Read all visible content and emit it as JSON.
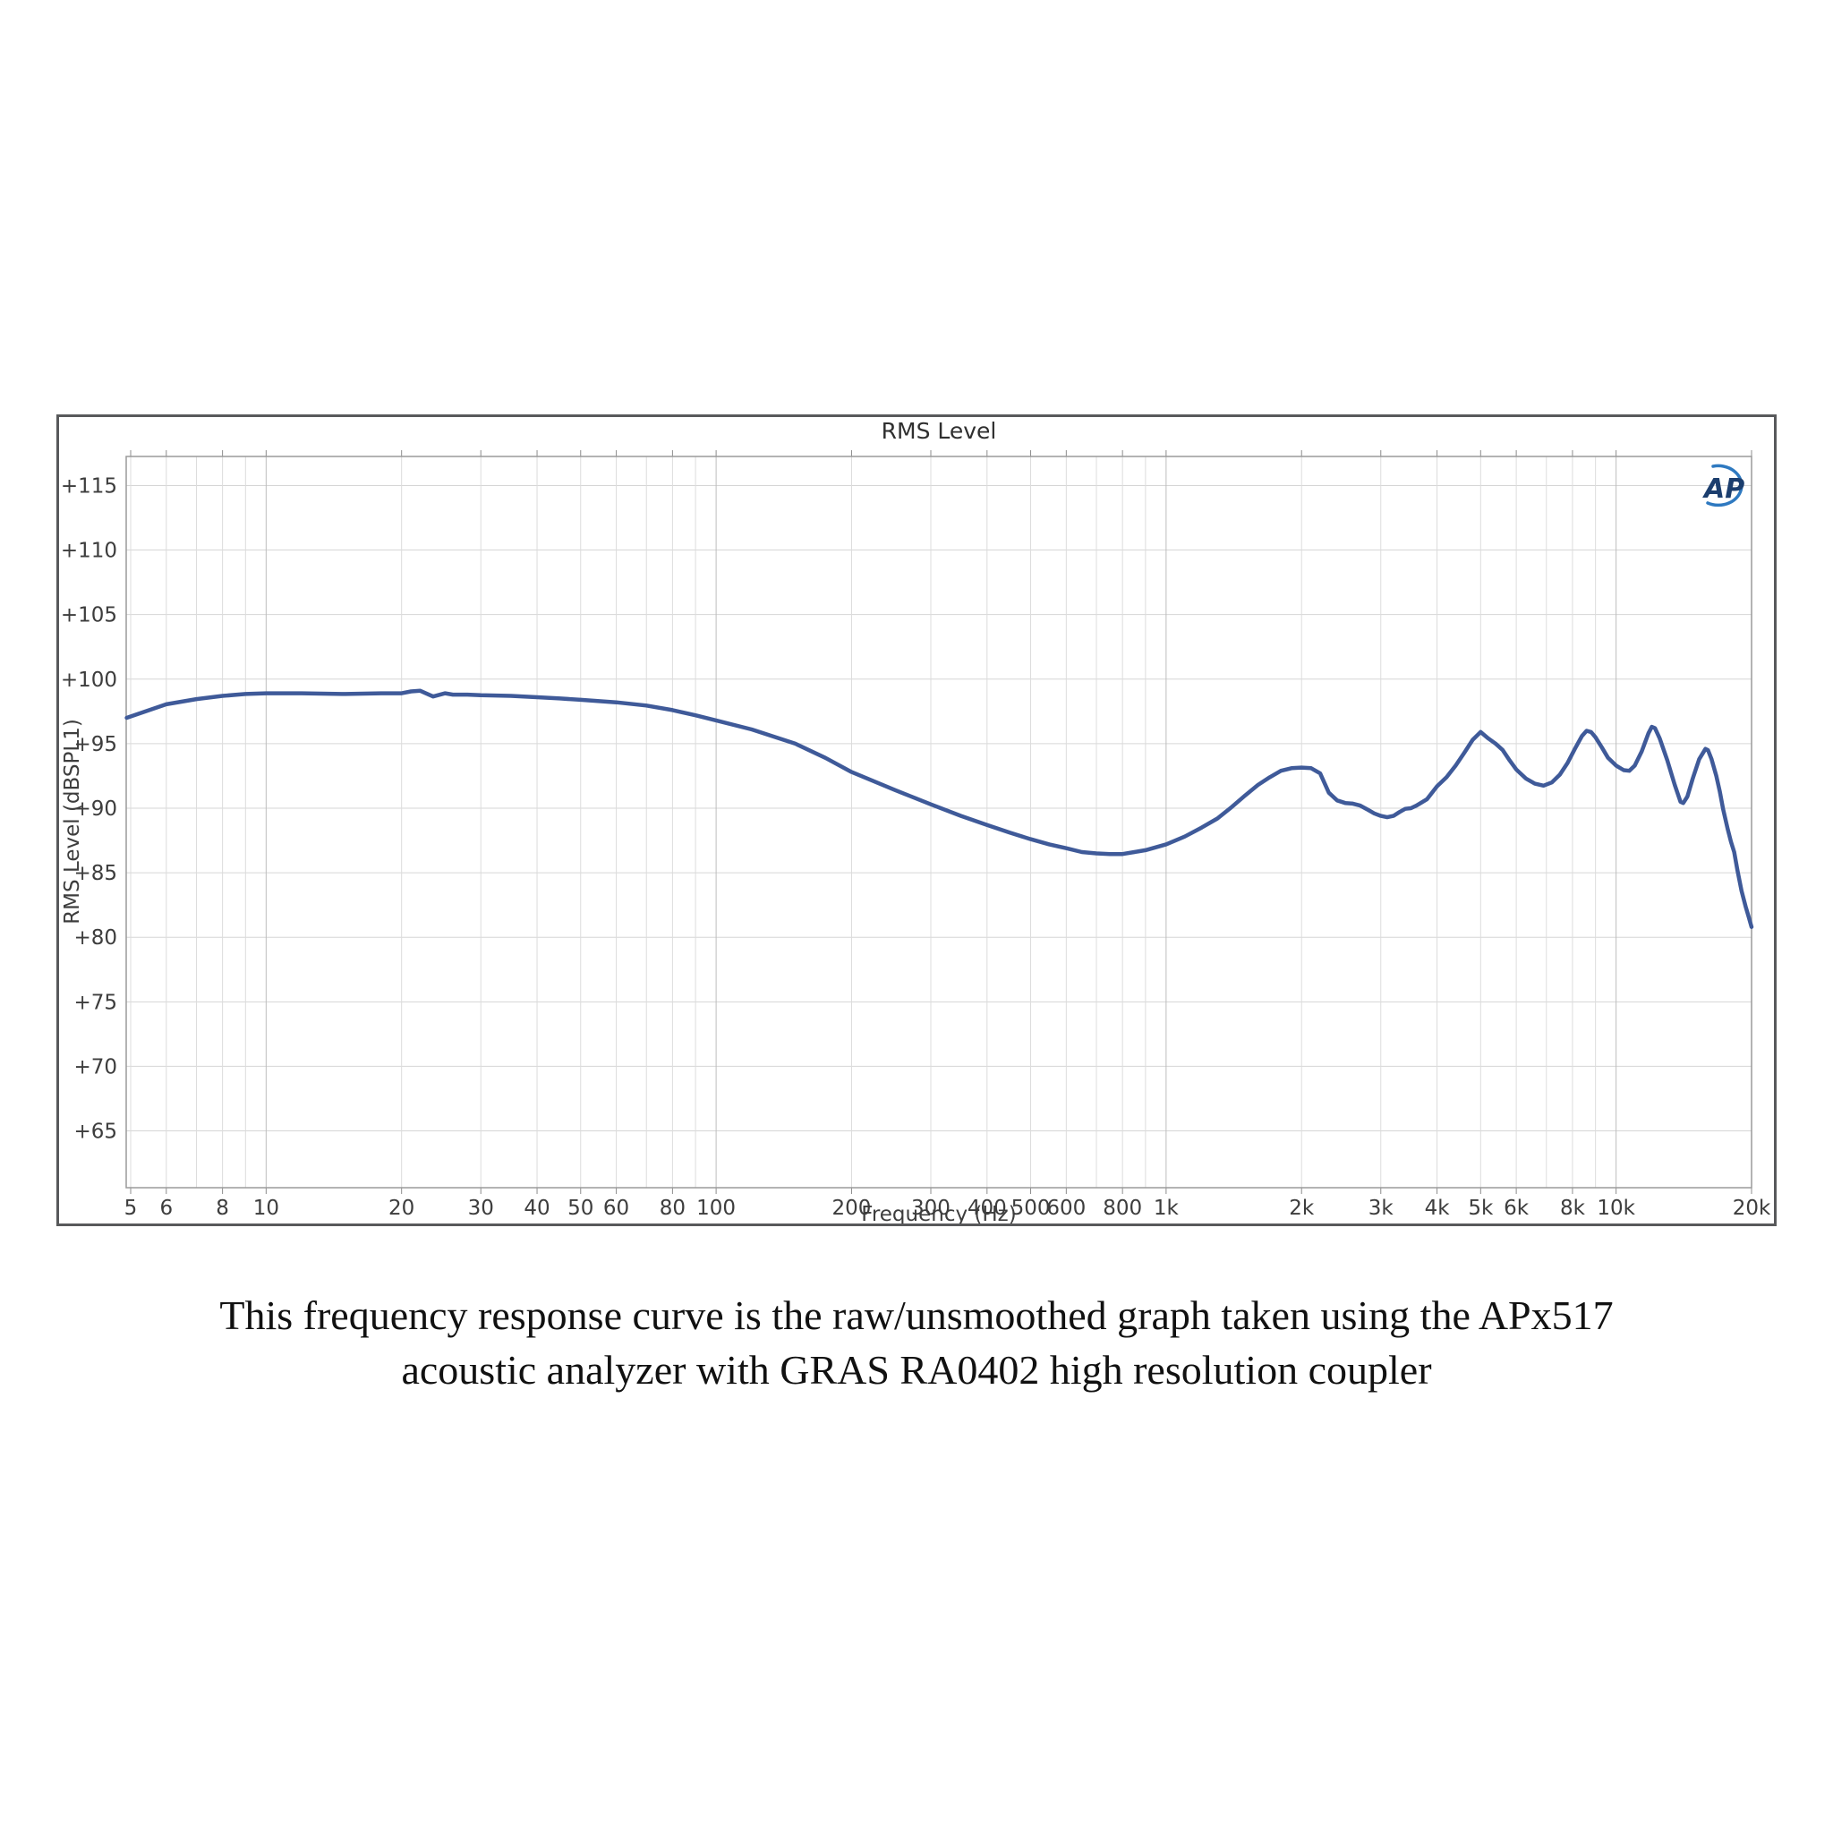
{
  "chart": {
    "title": "RMS Level",
    "x_axis_title": "Frequency (Hz)",
    "y_axis_title": "RMS Level (dBSPL1)",
    "x_tick_labels": [
      "5",
      "6",
      "8",
      "10",
      "20",
      "30",
      "40",
      "50",
      "60",
      "80",
      "100",
      "200",
      "300",
      "400",
      "500",
      "600",
      "800",
      "1k",
      "2k",
      "3k",
      "4k",
      "5k",
      "6k",
      "8k",
      "10k",
      "20k"
    ],
    "x_tick_freqs": [
      5,
      6,
      8,
      10,
      20,
      30,
      40,
      50,
      60,
      80,
      100,
      200,
      300,
      400,
      500,
      600,
      800,
      1000,
      2000,
      3000,
      4000,
      5000,
      6000,
      8000,
      10000,
      20000
    ],
    "y_tick_values": [
      115,
      110,
      105,
      100,
      95,
      90,
      85,
      80,
      75,
      70,
      65
    ],
    "y_tick_prefix": "+",
    "colors": {
      "curve": "#3f5a99",
      "grid_minor": "#dcdcdc",
      "grid_major": "#bdbdbd",
      "grid_horizontal": "#d6d6d6",
      "plot_border": "#9a9a9a",
      "tick_mark": "#8c8c8c",
      "panel_border": "#58595b",
      "label_text": "#3d3d3d",
      "logo_swoosh": "#2e79c0",
      "logo_text": "#1c3e6e"
    },
    "logo_text": "AP"
  },
  "chart_data": {
    "type": "line",
    "title": "RMS Level",
    "xlabel": "Frequency (Hz)",
    "ylabel": "RMS Level (dBSPL1)",
    "x_scale": "log",
    "xlim": [
      4.887,
      20000
    ],
    "ylim": [
      60.6,
      117.25
    ],
    "grid": true,
    "legend": false,
    "series": [
      {
        "name": "RMS Level (dBSPL1)",
        "color": "#3f5a99",
        "x": [
          4.9,
          5.5,
          6,
          7,
          8,
          9,
          10,
          12,
          15,
          18,
          20,
          21,
          22,
          23.5,
          25,
          26,
          28,
          30,
          35,
          40,
          45,
          50,
          60,
          70,
          80,
          90,
          100,
          120,
          150,
          175,
          200,
          250,
          300,
          350,
          400,
          450,
          500,
          550,
          600,
          650,
          700,
          750,
          800,
          850,
          900,
          1000,
          1100,
          1200,
          1300,
          1400,
          1500,
          1600,
          1700,
          1800,
          1900,
          2000,
          2100,
          2200,
          2300,
          2400,
          2500,
          2600,
          2700,
          2800,
          2900,
          3000,
          3100,
          3200,
          3300,
          3400,
          3500,
          3600,
          3800,
          4000,
          4200,
          4400,
          4600,
          4800,
          5000,
          5200,
          5400,
          5600,
          5800,
          6000,
          6300,
          6600,
          6900,
          7200,
          7500,
          7800,
          8100,
          8400,
          8600,
          8800,
          9000,
          9300,
          9600,
          10000,
          10400,
          10700,
          11000,
          11400,
          11800,
          12000,
          12200,
          12500,
          13000,
          13500,
          13900,
          14100,
          14400,
          14800,
          15300,
          15800,
          16000,
          16300,
          16700,
          17000,
          17300,
          17700,
          18000,
          18300,
          18600,
          19000,
          19400,
          19700,
          20000
        ],
        "y": [
          97.0,
          97.6,
          98.05,
          98.45,
          98.7,
          98.85,
          98.9,
          98.9,
          98.85,
          98.9,
          98.9,
          99.05,
          99.1,
          98.65,
          98.9,
          98.8,
          98.8,
          98.75,
          98.7,
          98.6,
          98.5,
          98.4,
          98.2,
          97.95,
          97.6,
          97.2,
          96.8,
          96.1,
          95.0,
          93.9,
          92.8,
          91.4,
          90.3,
          89.4,
          88.7,
          88.1,
          87.6,
          87.2,
          86.9,
          86.6,
          86.5,
          86.45,
          86.45,
          86.6,
          86.75,
          87.2,
          87.8,
          88.5,
          89.2,
          90.1,
          91.0,
          91.8,
          92.4,
          92.9,
          93.1,
          93.15,
          93.1,
          92.7,
          91.2,
          90.6,
          90.4,
          90.35,
          90.2,
          89.9,
          89.6,
          89.4,
          89.3,
          89.4,
          89.7,
          89.95,
          90.0,
          90.2,
          90.7,
          91.7,
          92.4,
          93.3,
          94.3,
          95.3,
          95.9,
          95.4,
          95.0,
          94.5,
          93.7,
          93.0,
          92.3,
          91.9,
          91.75,
          92.0,
          92.6,
          93.5,
          94.6,
          95.6,
          96.0,
          95.9,
          95.5,
          94.7,
          93.9,
          93.3,
          92.95,
          92.9,
          93.3,
          94.4,
          95.8,
          96.3,
          96.2,
          95.4,
          93.7,
          91.8,
          90.5,
          90.4,
          90.9,
          92.3,
          93.8,
          94.6,
          94.5,
          93.8,
          92.5,
          91.3,
          89.9,
          88.4,
          87.4,
          86.6,
          85.2,
          83.6,
          82.4,
          81.6,
          80.8
        ]
      }
    ]
  },
  "caption": {
    "line1": "This frequency response curve is the raw/unsmoothed graph taken using the APx517",
    "line2": "acoustic analyzer with GRAS RA0402 high resolution coupler"
  }
}
